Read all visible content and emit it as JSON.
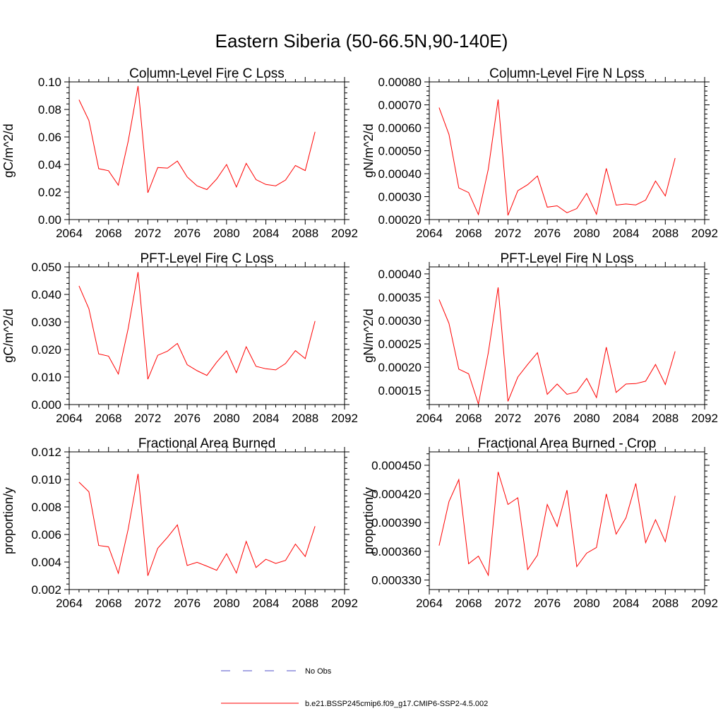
{
  "figure": {
    "title": "Eastern Siberia (50-66.5N,90-140E)"
  },
  "chart_data": [
    {
      "type": "line",
      "title": "Column-Level Fire C Loss",
      "xlabel": "",
      "ylabel": "gC/m^2/d",
      "xlim": [
        2064,
        2092
      ],
      "ylim": [
        0.0,
        0.1
      ],
      "xticks": [
        2064,
        2068,
        2072,
        2076,
        2080,
        2084,
        2088,
        2092
      ],
      "xtick_labels": [
        "2064",
        "2068",
        "2072",
        "2076",
        "2080",
        "2084",
        "2088",
        "2092"
      ],
      "yticks": [
        0.0,
        0.02,
        0.04,
        0.06,
        0.08,
        0.1
      ],
      "ytick_labels": [
        "0.00",
        "0.02",
        "0.04",
        "0.06",
        "0.08",
        "0.10"
      ],
      "series": [
        {
          "color": "#ff0000",
          "x": [
            2065,
            2066,
            2067,
            2068,
            2069,
            2070,
            2071,
            2072,
            2073,
            2074,
            2075,
            2076,
            2077,
            2078,
            2079,
            2080,
            2081,
            2082,
            2083,
            2084,
            2085,
            2086,
            2087,
            2088,
            2089
          ],
          "y": [
            0.087,
            0.072,
            0.037,
            0.0355,
            0.025,
            0.057,
            0.097,
            0.0195,
            0.0378,
            0.0374,
            0.0425,
            0.031,
            0.0245,
            0.0218,
            0.0295,
            0.04,
            0.0237,
            0.0408,
            0.029,
            0.0255,
            0.0245,
            0.0287,
            0.0393,
            0.0356,
            0.0637
          ]
        }
      ]
    },
    {
      "type": "line",
      "title": "Column-Level Fire N Loss",
      "xlabel": "",
      "ylabel": "gN/m^2/d",
      "xlim": [
        2064,
        2092
      ],
      "ylim": [
        0.0002,
        0.0008
      ],
      "xticks": [
        2064,
        2068,
        2072,
        2076,
        2080,
        2084,
        2088,
        2092
      ],
      "xtick_labels": [
        "2064",
        "2068",
        "2072",
        "2076",
        "2080",
        "2084",
        "2088",
        "2092"
      ],
      "yticks": [
        0.0002,
        0.0003,
        0.0004,
        0.0005,
        0.0006,
        0.0007,
        0.0008
      ],
      "ytick_labels": [
        "0.00020",
        "0.00030",
        "0.00040",
        "0.00050",
        "0.00060",
        "0.00070",
        "0.00080"
      ],
      "series": [
        {
          "color": "#ff0000",
          "x": [
            2065,
            2066,
            2067,
            2068,
            2069,
            2070,
            2071,
            2072,
            2073,
            2074,
            2075,
            2076,
            2077,
            2078,
            2079,
            2080,
            2081,
            2082,
            2083,
            2084,
            2085,
            2086,
            2087,
            2088,
            2089
          ],
          "y": [
            0.000688,
            0.000571,
            0.000338,
            0.000318,
            0.000222,
            0.00042,
            0.000723,
            0.000218,
            0.000326,
            0.000352,
            0.00039,
            0.000254,
            0.00026,
            0.00023,
            0.000248,
            0.000314,
            0.000223,
            0.000423,
            0.000263,
            0.000268,
            0.000264,
            0.000285,
            0.000368,
            0.000303,
            0.000468
          ]
        }
      ]
    },
    {
      "type": "line",
      "title": "PFT-Level Fire C Loss",
      "xlabel": "",
      "ylabel": "gC/m^2/d",
      "xlim": [
        2064,
        2092
      ],
      "ylim": [
        0.0,
        0.05
      ],
      "xticks": [
        2064,
        2068,
        2072,
        2076,
        2080,
        2084,
        2088,
        2092
      ],
      "xtick_labels": [
        "2064",
        "2068",
        "2072",
        "2076",
        "2080",
        "2084",
        "2088",
        "2092"
      ],
      "yticks": [
        0.0,
        0.01,
        0.02,
        0.03,
        0.04,
        0.05
      ],
      "ytick_labels": [
        "0.000",
        "0.010",
        "0.020",
        "0.030",
        "0.040",
        "0.050"
      ],
      "series": [
        {
          "color": "#ff0000",
          "x": [
            2065,
            2066,
            2067,
            2068,
            2069,
            2070,
            2071,
            2072,
            2073,
            2074,
            2075,
            2076,
            2077,
            2078,
            2079,
            2080,
            2081,
            2082,
            2083,
            2084,
            2085,
            2086,
            2087,
            2088,
            2089
          ],
          "y": [
            0.0431,
            0.0348,
            0.0184,
            0.0176,
            0.0111,
            0.0277,
            0.0481,
            0.0092,
            0.0179,
            0.0194,
            0.0222,
            0.0145,
            0.0123,
            0.0106,
            0.0154,
            0.0195,
            0.0116,
            0.021,
            0.0139,
            0.013,
            0.0126,
            0.0149,
            0.0196,
            0.0167,
            0.0303
          ]
        }
      ]
    },
    {
      "type": "line",
      "title": "PFT-Level Fire N Loss",
      "xlabel": "",
      "ylabel": "gN/m^2/d",
      "xlim": [
        2064,
        2092
      ],
      "ylim": [
        0.00012,
        0.000415
      ],
      "xticks": [
        2064,
        2068,
        2072,
        2076,
        2080,
        2084,
        2088,
        2092
      ],
      "xtick_labels": [
        "2064",
        "2068",
        "2072",
        "2076",
        "2080",
        "2084",
        "2088",
        "2092"
      ],
      "yticks": [
        0.00015,
        0.0002,
        0.00025,
        0.0003,
        0.00035,
        0.0004
      ],
      "ytick_labels": [
        "0.00015",
        "0.00020",
        "0.00025",
        "0.00030",
        "0.00035",
        "0.00040"
      ],
      "series": [
        {
          "color": "#ff0000",
          "x": [
            2065,
            2066,
            2067,
            2068,
            2069,
            2070,
            2071,
            2072,
            2073,
            2074,
            2075,
            2076,
            2077,
            2078,
            2079,
            2080,
            2081,
            2082,
            2083,
            2084,
            2085,
            2086,
            2087,
            2088,
            2089
          ],
          "y": [
            0.000345,
            0.000294,
            0.000196,
            0.000186,
            0.000121,
            0.000231,
            0.000371,
            0.000127,
            0.000179,
            0.000206,
            0.000231,
            0.000142,
            0.000164,
            0.000142,
            0.000147,
            0.000176,
            0.000135,
            0.000243,
            0.000146,
            0.000164,
            0.000165,
            0.00017,
            0.000206,
            0.000163,
            0.000234
          ]
        }
      ]
    },
    {
      "type": "line",
      "title": "Fractional Area Burned",
      "xlabel": "",
      "ylabel": "proportion/y",
      "xlim": [
        2064,
        2092
      ],
      "ylim": [
        0.002,
        0.012
      ],
      "xticks": [
        2064,
        2068,
        2072,
        2076,
        2080,
        2084,
        2088,
        2092
      ],
      "xtick_labels": [
        "2064",
        "2068",
        "2072",
        "2076",
        "2080",
        "2084",
        "2088",
        "2092"
      ],
      "yticks": [
        0.002,
        0.004,
        0.006,
        0.008,
        0.01,
        0.012
      ],
      "ytick_labels": [
        "0.002",
        "0.004",
        "0.006",
        "0.008",
        "0.010",
        "0.012"
      ],
      "series": [
        {
          "color": "#ff0000",
          "x": [
            2065,
            2066,
            2067,
            2068,
            2069,
            2070,
            2071,
            2072,
            2073,
            2074,
            2075,
            2076,
            2077,
            2078,
            2079,
            2080,
            2081,
            2082,
            2083,
            2084,
            2085,
            2086,
            2087,
            2088,
            2089
          ],
          "y": [
            0.0098,
            0.0091,
            0.0052,
            0.0051,
            0.00318,
            0.0064,
            0.0104,
            0.003,
            0.005,
            0.0058,
            0.0067,
            0.00375,
            0.00398,
            0.0037,
            0.0034,
            0.0046,
            0.0032,
            0.0055,
            0.0036,
            0.0042,
            0.0039,
            0.00412,
            0.0053,
            0.0044,
            0.0066
          ]
        }
      ]
    },
    {
      "type": "line",
      "title": "Fractional Area Burned - Crop",
      "xlabel": "",
      "ylabel": "proportion/y",
      "xlim": [
        2064,
        2092
      ],
      "ylim": [
        0.00032,
        0.000464
      ],
      "xticks": [
        2064,
        2068,
        2072,
        2076,
        2080,
        2084,
        2088,
        2092
      ],
      "xtick_labels": [
        "2064",
        "2068",
        "2072",
        "2076",
        "2080",
        "2084",
        "2088",
        "2092"
      ],
      "yticks": [
        0.00033,
        0.00036,
        0.00039,
        0.00042,
        0.00045
      ],
      "ytick_labels": [
        "0.000330",
        "0.000360",
        "0.000390",
        "0.000420",
        "0.000450"
      ],
      "series": [
        {
          "color": "#ff0000",
          "x": [
            2065,
            2066,
            2067,
            2068,
            2069,
            2070,
            2071,
            2072,
            2073,
            2074,
            2075,
            2076,
            2077,
            2078,
            2079,
            2080,
            2081,
            2082,
            2083,
            2084,
            2085,
            2086,
            2087,
            2088,
            2089
          ],
          "y": [
            0.000366,
            0.000412,
            0.000435,
            0.000347,
            0.000355,
            0.000335,
            0.000443,
            0.000409,
            0.000416,
            0.000341,
            0.000356,
            0.000409,
            0.000386,
            0.000424,
            0.000344,
            0.000358,
            0.000364,
            0.00042,
            0.000378,
            0.000395,
            0.000431,
            0.000369,
            0.000393,
            0.00037,
            0.000418
          ]
        }
      ]
    }
  ],
  "legend": {
    "items": [
      {
        "label": "No Obs",
        "color": "#5050c8",
        "style": "dashed"
      },
      {
        "label": "b.e21.BSSP245cmip6.f09_g17.CMIP6-SSP2-4.5.002",
        "color": "#ff0000",
        "style": "solid"
      }
    ]
  }
}
